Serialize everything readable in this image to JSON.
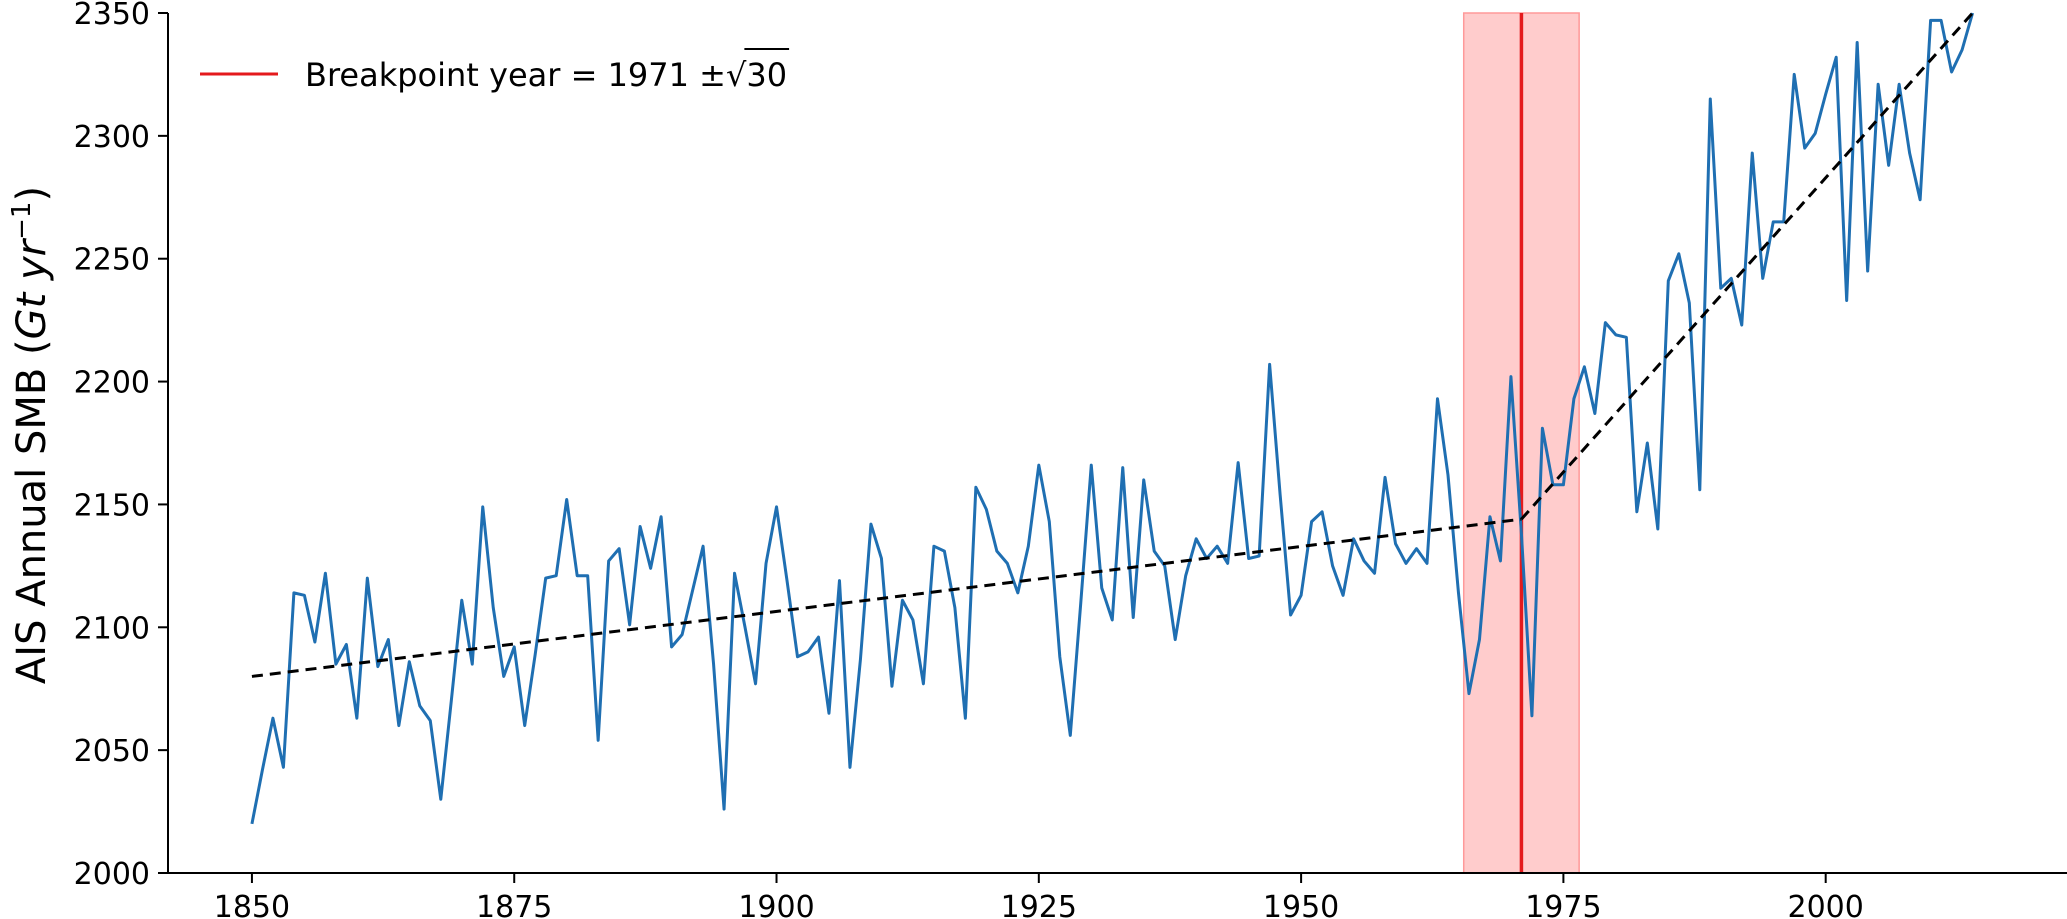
{
  "colors": {
    "series": "#1f6fb2",
    "breakpoint": "#e41a1c",
    "band": "#ff9999",
    "fit": "#000000",
    "axis": "#000000"
  },
  "chart_data": {
    "type": "line",
    "title": "",
    "xlabel": "",
    "ylabel": "AIS Annual SMB (Gt yr⁻¹)",
    "ylabel_parts": {
      "main": "AIS Annual SMB (",
      "unit_italic": "Gt yr",
      "sup": "−1",
      "close": ")"
    },
    "xlim": [
      1842,
      2023
    ],
    "ylim": [
      2000,
      2350
    ],
    "xticks": [
      1850,
      1875,
      1900,
      1925,
      1950,
      1975,
      2000
    ],
    "yticks": [
      2000,
      2050,
      2100,
      2150,
      2200,
      2250,
      2300,
      2350
    ],
    "grid": false,
    "legend_position": "top-left",
    "legend": [
      {
        "label": "Breakpoint year = 1971 ±√30",
        "label_main": "Breakpoint year = 1971 ±",
        "label_sqrt": "30"
      }
    ],
    "breakpoint": {
      "year": 1971,
      "band": [
        1965.5,
        1976.5
      ]
    },
    "fit_segments": [
      {
        "x": [
          1850,
          1971
        ],
        "y": [
          2080,
          2144
        ]
      },
      {
        "x": [
          1971,
          2014
        ],
        "y": [
          2144,
          2350
        ]
      }
    ],
    "series": [
      {
        "name": "AIS Annual SMB",
        "x": [
          1850,
          1851,
          1852,
          1853,
          1854,
          1855,
          1856,
          1857,
          1858,
          1859,
          1860,
          1861,
          1862,
          1863,
          1864,
          1865,
          1866,
          1867,
          1868,
          1869,
          1870,
          1871,
          1872,
          1873,
          1874,
          1875,
          1876,
          1877,
          1878,
          1879,
          1880,
          1881,
          1882,
          1883,
          1884,
          1885,
          1886,
          1887,
          1888,
          1889,
          1890,
          1891,
          1892,
          1893,
          1894,
          1895,
          1896,
          1897,
          1898,
          1899,
          1900,
          1901,
          1902,
          1903,
          1904,
          1905,
          1906,
          1907,
          1908,
          1909,
          1910,
          1911,
          1912,
          1913,
          1914,
          1915,
          1916,
          1917,
          1918,
          1919,
          1920,
          1921,
          1922,
          1923,
          1924,
          1925,
          1926,
          1927,
          1928,
          1929,
          1930,
          1931,
          1932,
          1933,
          1934,
          1935,
          1936,
          1937,
          1938,
          1939,
          1940,
          1941,
          1942,
          1943,
          1944,
          1945,
          1946,
          1947,
          1948,
          1949,
          1950,
          1951,
          1952,
          1953,
          1954,
          1955,
          1956,
          1957,
          1958,
          1959,
          1960,
          1961,
          1962,
          1963,
          1964,
          1965,
          1966,
          1967,
          1968,
          1969,
          1970,
          1971,
          1972,
          1973,
          1974,
          1975,
          1976,
          1977,
          1978,
          1979,
          1980,
          1981,
          1982,
          1983,
          1984,
          1985,
          1986,
          1987,
          1988,
          1989,
          1990,
          1991,
          1992,
          1993,
          1994,
          1995,
          1996,
          1997,
          1998,
          1999,
          2000,
          2001,
          2002,
          2003,
          2004,
          2005,
          2006,
          2007,
          2008,
          2009,
          2010,
          2011,
          2012,
          2013,
          2014
        ],
        "y": [
          2020,
          2042,
          2063,
          2043,
          2114,
          2113,
          2094,
          2122,
          2085,
          2093,
          2063,
          2120,
          2084,
          2095,
          2060,
          2086,
          2068,
          2062,
          2030,
          2070,
          2111,
          2085,
          2149,
          2108,
          2080,
          2092,
          2060,
          2089,
          2120,
          2121,
          2152,
          2121,
          2121,
          2054,
          2127,
          2132,
          2101,
          2141,
          2124,
          2145,
          2092,
          2097,
          2115,
          2133,
          2085,
          2026,
          2122,
          2100,
          2077,
          2126,
          2149,
          2119,
          2088,
          2090,
          2096,
          2065,
          2119,
          2043,
          2087,
          2142,
          2128,
          2076,
          2111,
          2103,
          2077,
          2133,
          2131,
          2108,
          2063,
          2157,
          2148,
          2131,
          2126,
          2114,
          2133,
          2166,
          2143,
          2088,
          2056,
          2110,
          2166,
          2116,
          2103,
          2165,
          2104,
          2160,
          2131,
          2125,
          2095,
          2121,
          2136,
          2128,
          2133,
          2126,
          2167,
          2128,
          2129,
          2207,
          2154,
          2105,
          2113,
          2143,
          2147,
          2125,
          2113,
          2136,
          2127,
          2122,
          2161,
          2134,
          2126,
          2132,
          2126,
          2193,
          2162,
          2114,
          2073,
          2095,
          2145,
          2127,
          2202,
          2138,
          2064,
          2181,
          2158,
          2158,
          2193,
          2206,
          2187,
          2224,
          2219,
          2218,
          2147,
          2175,
          2140,
          2241,
          2252,
          2232,
          2156,
          2315,
          2238,
          2242,
          2223,
          2293,
          2242,
          2265,
          2265,
          2325,
          2295,
          2301,
          2317,
          2332,
          2233,
          2338,
          2245,
          2321,
          2288,
          2321,
          2293,
          2274,
          2347,
          2347,
          2326,
          2335,
          2350
        ]
      }
    ]
  }
}
